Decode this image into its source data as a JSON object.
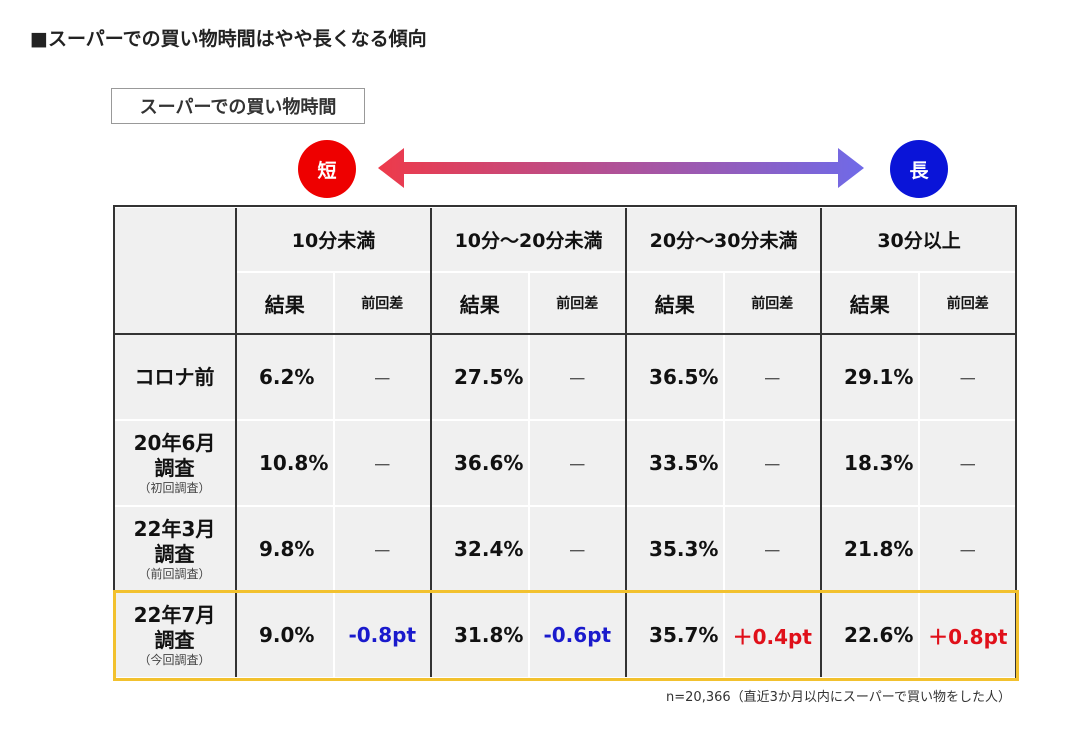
{
  "title": "■スーパーでの買い物時間はやや長くなる傾向",
  "box_label": "スーパーでの買い物時間",
  "short_label": "短",
  "long_label": "長",
  "colors": {
    "short": "#ee0000",
    "long": "#0a14d8",
    "highlight": "#f2c12e",
    "negative": "#1a1acc",
    "positive": "#e0101a"
  },
  "headers": [
    "10分未満",
    "10分～20分未満",
    "20分～30分未満",
    "30分以上"
  ],
  "sub": {
    "result": "結果",
    "diff": "前回差"
  },
  "rows": [
    {
      "label": "コロナ前",
      "note": "",
      "cells": [
        [
          "6.2%",
          "－"
        ],
        [
          "27.5%",
          "－"
        ],
        [
          "36.5%",
          "－"
        ],
        [
          "29.1%",
          "－"
        ]
      ]
    },
    {
      "label": "20年6月調査",
      "note": "（初回調査）",
      "cells": [
        [
          "10.8%",
          "－"
        ],
        [
          "36.6%",
          "－"
        ],
        [
          "33.5%",
          "－"
        ],
        [
          "18.3%",
          "－"
        ]
      ]
    },
    {
      "label": "22年3月調査",
      "note": "（前回調査）",
      "cells": [
        [
          "9.8%",
          "－"
        ],
        [
          "32.4%",
          "－"
        ],
        [
          "35.3%",
          "－"
        ],
        [
          "21.8%",
          "－"
        ]
      ]
    },
    {
      "label": "22年7月調査",
      "note": "（今回調査）",
      "cells": [
        [
          "9.0%",
          "-0.8pt"
        ],
        [
          "31.8%",
          "-0.6pt"
        ],
        [
          "35.7%",
          "＋0.4pt"
        ],
        [
          "22.6%",
          "＋0.8pt"
        ]
      ]
    }
  ],
  "footnote": "n=20,366（直近3か月以内にスーパーで買い物をした人）"
}
